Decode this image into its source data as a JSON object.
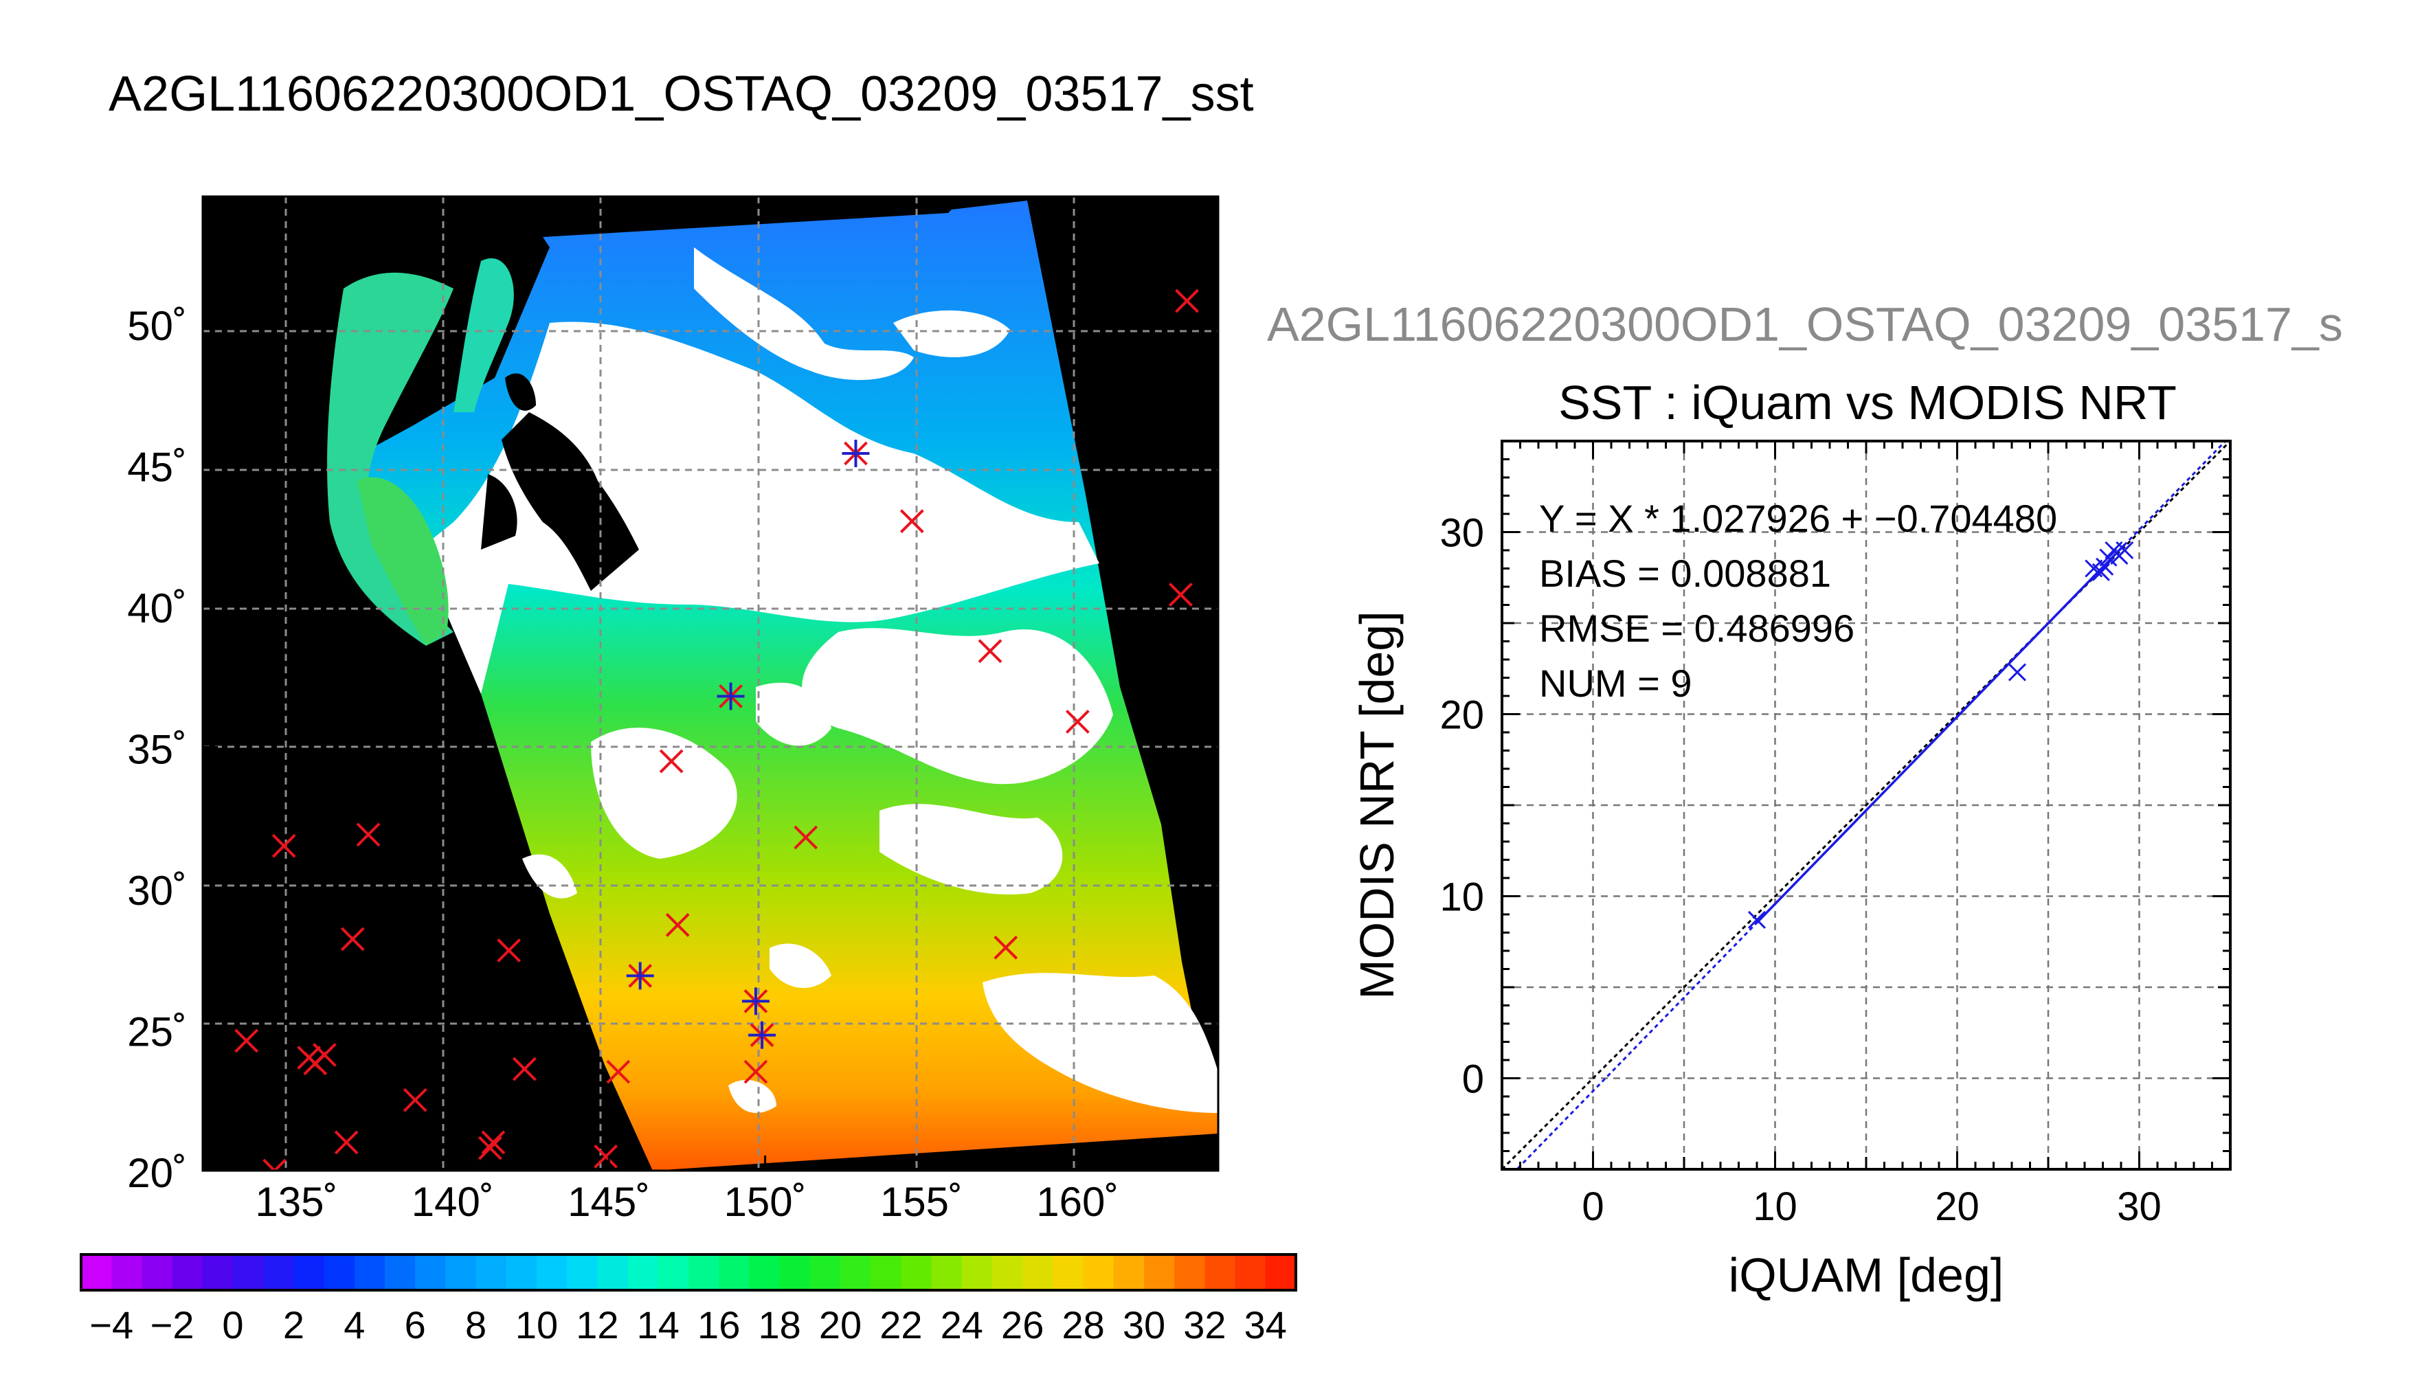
{
  "page": {
    "title": "A2GL11606220300OD1_OSTAQ_03209_03517_sst"
  },
  "map": {
    "lat_labels": [
      "50˚",
      "45˚",
      "40˚",
      "35˚",
      "30˚",
      "25˚",
      "20˚"
    ],
    "lon_labels": [
      "135˚",
      "140˚",
      "145˚",
      "150˚",
      "155˚",
      "160˚"
    ],
    "lat_values": [
      50,
      45,
      40,
      35,
      30,
      25,
      20
    ],
    "lon_values": [
      135,
      140,
      145,
      150,
      155,
      160
    ],
    "lon_range": [
      132,
      164.5
    ],
    "lat_range": [
      20,
      54.5
    ],
    "buoy_marks_red_x": [
      [
        163.5,
        50.8
      ],
      [
        154.7,
        43.0
      ],
      [
        157.2,
        38.4
      ],
      [
        160.0,
        35.9
      ],
      [
        163.3,
        40.4
      ],
      [
        147.0,
        34.5
      ],
      [
        151.3,
        31.8
      ],
      [
        134.6,
        31.5
      ],
      [
        137.3,
        31.9
      ],
      [
        136.8,
        28.2
      ],
      [
        141.8,
        27.8
      ],
      [
        147.2,
        28.7
      ],
      [
        157.7,
        27.9
      ],
      [
        133.4,
        24.6
      ],
      [
        135.4,
        24.0
      ],
      [
        135.9,
        24.1
      ],
      [
        135.6,
        23.8
      ],
      [
        138.8,
        22.5
      ],
      [
        142.3,
        23.6
      ],
      [
        145.3,
        23.5
      ],
      [
        149.7,
        23.5
      ],
      [
        136.6,
        21.0
      ],
      [
        141.3,
        21.0
      ],
      [
        141.2,
        20.8
      ],
      [
        144.9,
        20.5
      ],
      [
        134.3,
        20.0
      ]
    ],
    "matched_marks_star": [
      [
        152.9,
        45.4
      ],
      [
        148.9,
        36.8
      ],
      [
        146.0,
        26.9
      ],
      [
        149.7,
        26.0
      ],
      [
        149.9,
        24.8
      ]
    ]
  },
  "colorbar": {
    "tick_labels": [
      "−4",
      "−2",
      "0",
      "2",
      "4",
      "6",
      "8",
      "10",
      "12",
      "14",
      "16",
      "18",
      "20",
      "22",
      "24",
      "26",
      "28",
      "30",
      "32",
      "34"
    ],
    "min": -5,
    "max": 35,
    "step": 1
  },
  "scatter": {
    "top_title": "A2GL11606220300OD1_OSTAQ_03209_03517_s",
    "title": "SST : iQuam vs MODIS NRT",
    "stats": [
      "Y = X * 1.027926 + −0.704480",
      "BIAS = 0.008881",
      "RMSE = 0.486996",
      "NUM = 9"
    ]
  },
  "chart_data": {
    "type": "scatter",
    "title": "SST : iQuam vs MODIS NRT",
    "xlabel": "iQUAM [deg]",
    "ylabel": "MODIS NRT [deg]",
    "xlim": [
      -5,
      35
    ],
    "ylim": [
      -5,
      35
    ],
    "xticks": [
      "0",
      "10",
      "20",
      "30"
    ],
    "yticks": [
      "0",
      "10",
      "20",
      "30"
    ],
    "tick_values": [
      0,
      10,
      20,
      30
    ],
    "grid": true,
    "points": [
      {
        "x": 9.0,
        "y": 8.7
      },
      {
        "x": 23.3,
        "y": 22.3
      },
      {
        "x": 27.5,
        "y": 28.0
      },
      {
        "x": 27.9,
        "y": 27.8
      },
      {
        "x": 28.1,
        "y": 28.1
      },
      {
        "x": 28.3,
        "y": 28.6
      },
      {
        "x": 28.6,
        "y": 29.0
      },
      {
        "x": 28.9,
        "y": 28.7
      },
      {
        "x": 29.2,
        "y": 29.0
      }
    ],
    "fit": {
      "slope": 1.027926,
      "intercept": -0.70448
    },
    "colors": {
      "points": "#1a1ae6",
      "fit_line": "#1a1ae6",
      "identity_line": "#000000"
    }
  }
}
